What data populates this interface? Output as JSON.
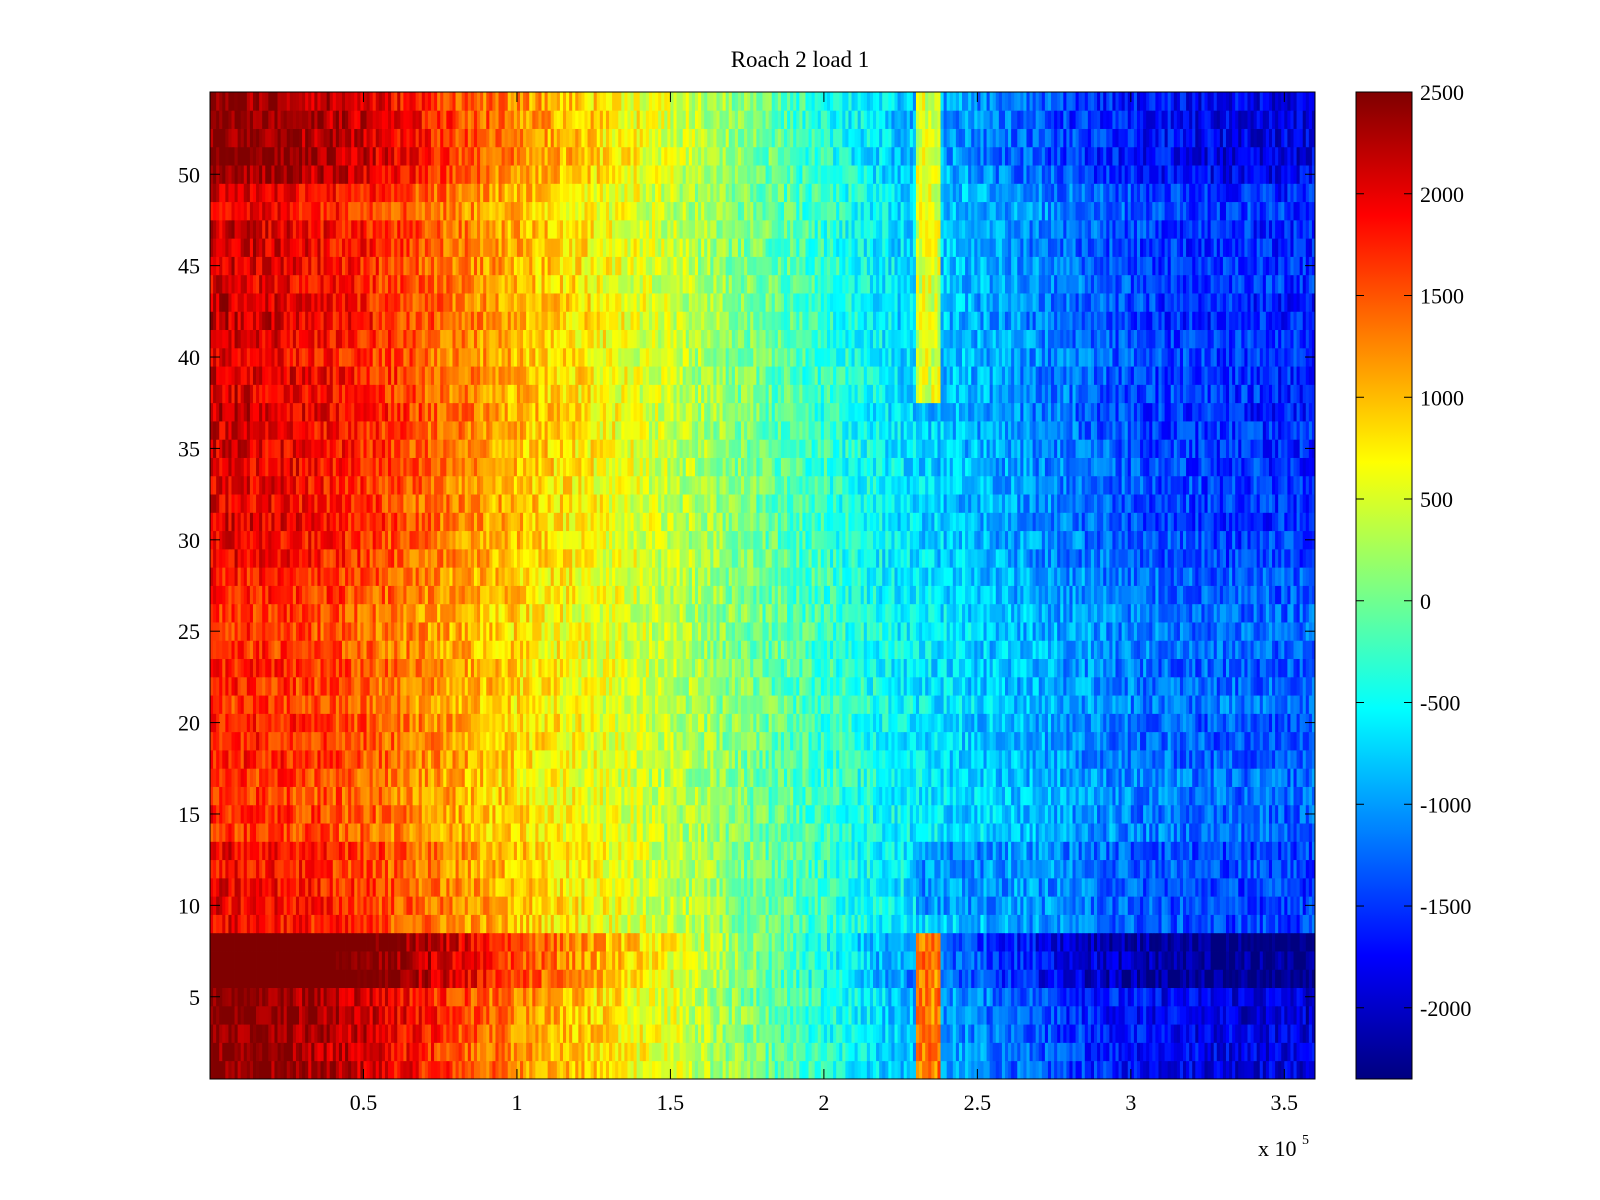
{
  "chart_data": {
    "type": "heatmap",
    "title": "Roach 2 load 1",
    "xlabel": "",
    "ylabel": "",
    "x_multiplier_label": {
      "base": "x 10",
      "exponent": "5"
    },
    "xlim": [
      0,
      3.6
    ],
    "ylim": [
      0.5,
      54.5
    ],
    "x_ticks": [
      0.5,
      1,
      1.5,
      2,
      2.5,
      3,
      3.5
    ],
    "x_tick_labels": [
      "0.5",
      "1",
      "1.5",
      "2",
      "2.5",
      "3",
      "3.5"
    ],
    "y_ticks": [
      5,
      10,
      15,
      20,
      25,
      30,
      35,
      40,
      45,
      50
    ],
    "y_tick_labels": [
      "5",
      "10",
      "15",
      "20",
      "25",
      "30",
      "35",
      "40",
      "45",
      "50"
    ],
    "rows": 54,
    "columns": 360,
    "x_unit_scale": 100000,
    "colorbar": {
      "colormap": "jet",
      "range": [
        -2350,
        2500
      ],
      "ticks": [
        2500,
        2000,
        1500,
        1000,
        500,
        0,
        -500,
        -1000,
        -1500,
        -2000
      ],
      "tick_labels": [
        "2500",
        "2000",
        "1500",
        "1000",
        "500",
        "0",
        "-500",
        "-1000",
        "-1500",
        "-2000"
      ]
    },
    "profile_description": "Values are high on the left and decrease toward the right across all rows",
    "base_profile": {
      "x": [
        0.0,
        0.25,
        0.5,
        0.75,
        1.0,
        1.25,
        1.5,
        1.75,
        2.0,
        2.25,
        2.5,
        2.75,
        3.0,
        3.25,
        3.6
      ],
      "value": [
        1750,
        1650,
        1450,
        1150,
        850,
        600,
        350,
        50,
        -250,
        -550,
        -750,
        -950,
        -1150,
        -1250,
        -1300
      ]
    },
    "row_groups": [
      {
        "rows": [
          1,
          5
        ],
        "amplitude": 1.45
      },
      {
        "rows": [
          6,
          8
        ],
        "amplitude": 1.85
      },
      {
        "rows": [
          9,
          13
        ],
        "amplitude": 1.1
      },
      {
        "rows": [
          14,
          28
        ],
        "amplitude": 1.0
      },
      {
        "rows": [
          29,
          31
        ],
        "amplitude": 1.15
      },
      {
        "rows": [
          32,
          37
        ],
        "amplitude": 1.2
      },
      {
        "rows": [
          38,
          43
        ],
        "amplitude": 1.2
      },
      {
        "rows": [
          44,
          49
        ],
        "amplitude": 1.2
      },
      {
        "rows": [
          50,
          54
        ],
        "amplitude": 1.45
      }
    ],
    "anomalies": [
      {
        "rows": [
          1,
          8
        ],
        "x_range": [
          2.3,
          2.38
        ],
        "value": 1300
      },
      {
        "rows": [
          38,
          54
        ],
        "x_range": [
          2.3,
          2.38
        ],
        "value": 500
      },
      {
        "rows": [
          10,
          13
        ],
        "x_range": [
          2.3,
          2.6
        ],
        "value": -1050
      }
    ]
  }
}
